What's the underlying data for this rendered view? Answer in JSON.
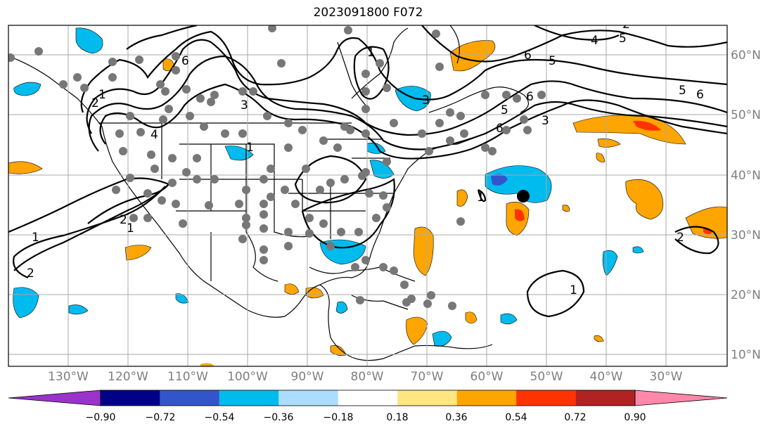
{
  "title": "2023091800 F072",
  "map": {
    "lat_labels": [
      "60°N",
      "50°N",
      "40°N",
      "30°N",
      "20°N",
      "10°N"
    ],
    "lon_labels": [
      "130°W",
      "120°W",
      "110°W",
      "100°W",
      "90°W",
      "80°W",
      "70°W",
      "60°W",
      "50°W",
      "40°W",
      "30°W"
    ],
    "contour_labels": [
      "1",
      "2",
      "3",
      "4",
      "5",
      "6",
      "1",
      "2",
      "1",
      "2",
      "5",
      "6",
      "6",
      "5",
      "3",
      "4",
      "6",
      "1",
      "3",
      "6",
      "5",
      "2",
      "1",
      "1",
      "1",
      "2"
    ],
    "storm_marker": "black-dot",
    "gray_marker": "gray-dot"
  },
  "colorbar": {
    "colors": [
      "#9933cc",
      "#000088",
      "#3355cc",
      "#00bbee",
      "#aaddff",
      "#ffffff",
      "#ffe680",
      "#ffa500",
      "#ff3300",
      "#b22222",
      "#ff88aa"
    ],
    "tick_labels": [
      "−0.90",
      "−0.72",
      "−0.54",
      "−0.36",
      "−0.18",
      "0.18",
      "0.36",
      "0.54",
      "0.72",
      "0.90"
    ]
  },
  "colors": {
    "land_line": "#000000",
    "contour": "#000000",
    "grid": "#aaaaaa",
    "station": "#777777",
    "label": "#7f7f7f"
  }
}
